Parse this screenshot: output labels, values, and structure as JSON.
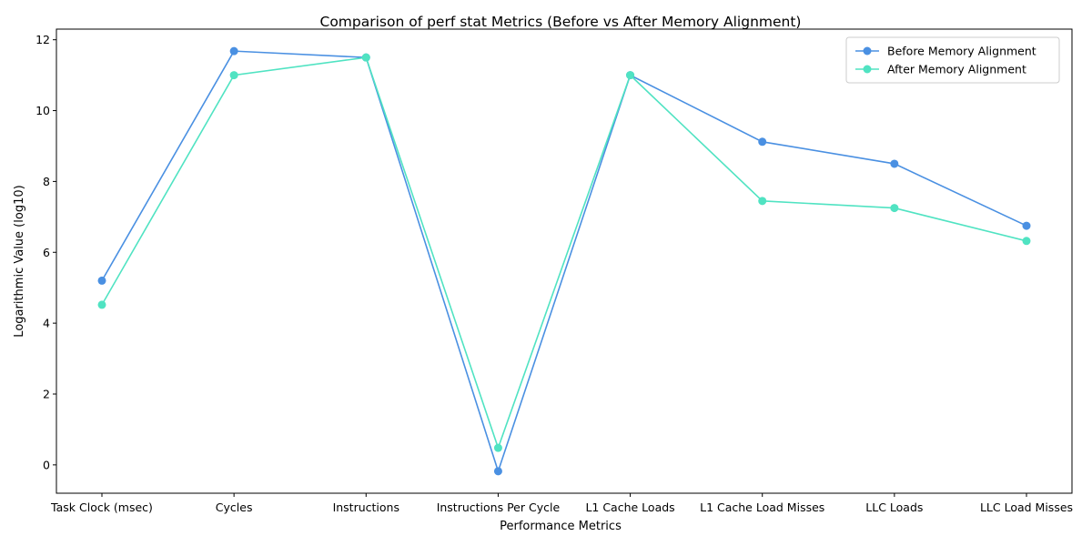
{
  "chart_data": {
    "type": "line",
    "title": "Comparison of perf stat Metrics (Before vs After Memory Alignment)",
    "xlabel": "Performance Metrics",
    "ylabel": "Logarithmic Value (log10)",
    "categories": [
      "Task Clock (msec)",
      "Cycles",
      "Instructions",
      "Instructions Per Cycle",
      "L1 Cache Loads",
      "L1 Cache Load Misses",
      "LLC Loads",
      "LLC Load Misses"
    ],
    "ylim": [
      -0.8,
      12.3
    ],
    "yticks": [
      0,
      2,
      4,
      6,
      8,
      10,
      12
    ],
    "grid": false,
    "legend_position": "top-right",
    "series": [
      {
        "name": "Before Memory Alignment",
        "color": "#4a90e2",
        "marker": "circle",
        "values": [
          5.2,
          11.68,
          11.5,
          -0.18,
          11.0,
          9.12,
          8.5,
          6.75
        ]
      },
      {
        "name": "After Memory Alignment",
        "color": "#50e3c2",
        "marker": "circle",
        "values": [
          4.52,
          11.0,
          11.5,
          0.48,
          11.0,
          7.45,
          7.25,
          6.32
        ]
      }
    ]
  }
}
